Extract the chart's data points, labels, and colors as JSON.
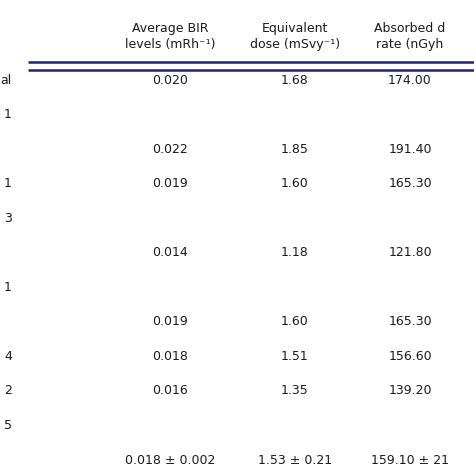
{
  "col_headers_line1": [
    "Average BIR",
    "Equivalent",
    "Absorbed d"
  ],
  "col_headers_line2": [
    "levels (mRh⁻¹)",
    "dose (mSvy⁻¹)",
    "rate (nGyh"
  ],
  "background_color": "#ffffff",
  "header_line_color": "#1a237e",
  "text_color": "#1a1a1a",
  "font_size": 9.0,
  "header_font_size": 9.0,
  "rows": [
    {
      "left": "al",
      "data": [
        "0.020",
        "1.68",
        "174.00"
      ],
      "has_data": true
    },
    {
      "left": "1",
      "data": [
        "",
        "",
        ""
      ],
      "has_data": false
    },
    {
      "left": "",
      "data": [
        "0.022",
        "1.85",
        "191.40"
      ],
      "has_data": true
    },
    {
      "left": "1",
      "data": [
        "0.019",
        "1.60",
        "165.30"
      ],
      "has_data": true
    },
    {
      "left": "3",
      "data": [
        "",
        "",
        ""
      ],
      "has_data": false
    },
    {
      "left": "",
      "data": [
        "0.014",
        "1.18",
        "121.80"
      ],
      "has_data": true
    },
    {
      "left": "1",
      "data": [
        "",
        "",
        ""
      ],
      "has_data": false
    },
    {
      "left": "",
      "data": [
        "0.019",
        "1.60",
        "165.30"
      ],
      "has_data": true
    },
    {
      "left": "4",
      "data": [
        "0.018",
        "1.51",
        "156.60"
      ],
      "has_data": true
    },
    {
      "left": "2",
      "data": [
        "0.016",
        "1.35",
        "139.20"
      ],
      "has_data": true
    },
    {
      "left": "5",
      "data": [
        "",
        "",
        ""
      ],
      "has_data": false
    },
    {
      "left": "",
      "data": [
        "0.018 ± 0.002",
        "1.53 ± 0.21",
        "159.10 ± 21"
      ],
      "has_data": true
    }
  ]
}
